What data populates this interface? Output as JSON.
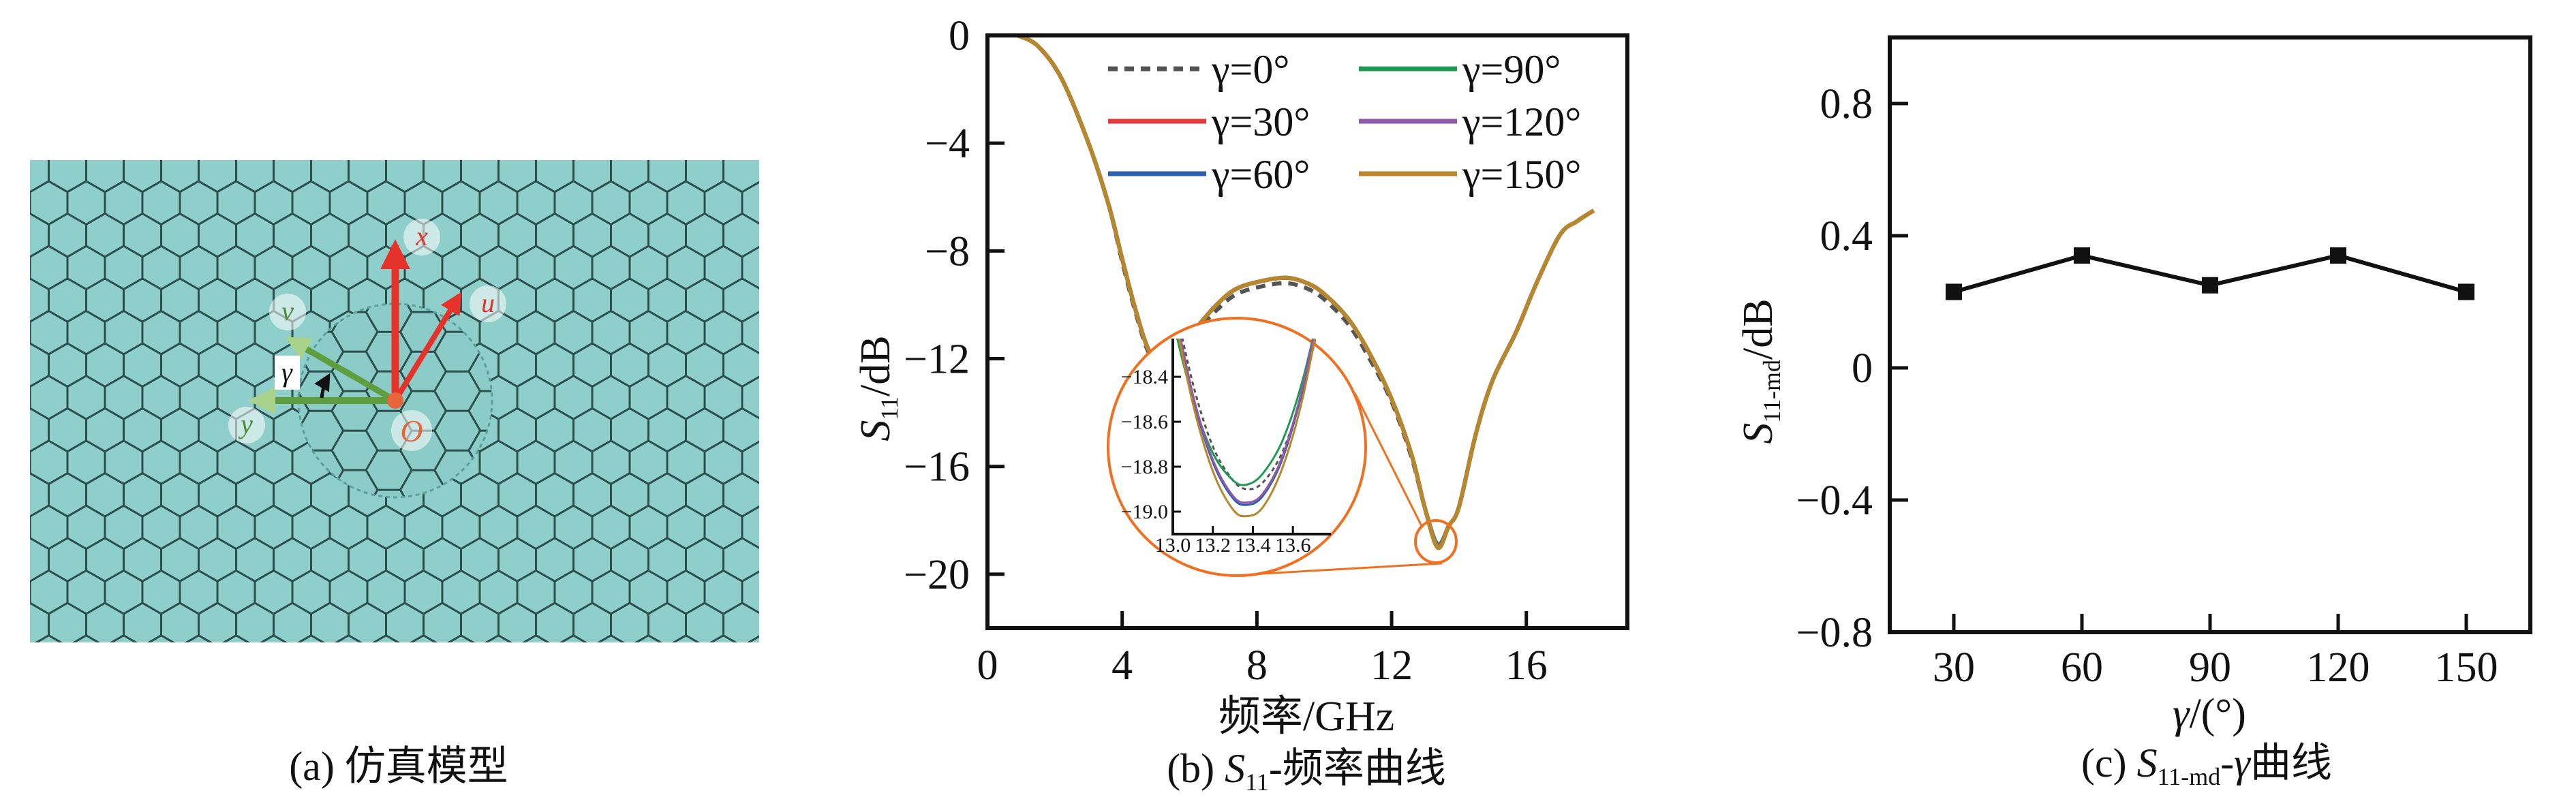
{
  "panel_a": {
    "caption": "(a) 仿真模型",
    "labels": {
      "x": "x",
      "u": "u",
      "v": "v",
      "y": "y",
      "origin": "O",
      "gamma": "γ"
    },
    "colors": {
      "tile": "#8fcfcb",
      "grid_line": "#2c4f4d",
      "red_arrow": "#e5322a",
      "green_arrow": "#7fb65a",
      "green_text": "#4f8a35",
      "origin": "#e8643a"
    }
  },
  "chart_data": [
    {
      "id": "s11_frequency",
      "type": "line",
      "caption": {
        "prefix": "(b) ",
        "sym": "S",
        "sub": "11",
        "suffix": "-频率曲线"
      },
      "xlabel": "频率/GHz",
      "ylabel": {
        "sym": "S",
        "sub": "11",
        "unit": "/dB"
      },
      "xlim": [
        0,
        19
      ],
      "ylim": [
        -22,
        0
      ],
      "xticks": [
        0,
        4,
        8,
        12,
        16
      ],
      "xtick_labels": [
        "0",
        "4",
        "8",
        "12",
        "16"
      ],
      "yticks": [
        0,
        -4,
        -8,
        -12,
        -16,
        -20
      ],
      "ytick_labels": [
        "0",
        "−4",
        "−8",
        "−12",
        "−16",
        "−20"
      ],
      "grid": false,
      "legend_placement": "top",
      "x": [
        0.9,
        1.5,
        2.2,
        3.0,
        3.6,
        4.0,
        4.4,
        4.8,
        5.2,
        5.6,
        6.1,
        6.8,
        7.4,
        8.2,
        8.9,
        9.5,
        10.0,
        10.7,
        11.3,
        12.0,
        12.6,
        13.0,
        13.37,
        13.7,
        14.0,
        14.5,
        15.0,
        15.7,
        16.3,
        17.0,
        17.5,
        18.0
      ],
      "series": [
        {
          "name": "γ=0°",
          "color": "#555555",
          "dash": true,
          "y": [
            0,
            -0.4,
            -1.6,
            -4.0,
            -6.3,
            -8.4,
            -10.3,
            -11.8,
            -12.1,
            -11.8,
            -11.1,
            -10.2,
            -9.6,
            -9.3,
            -9.2,
            -9.4,
            -9.8,
            -10.7,
            -11.9,
            -13.6,
            -15.7,
            -17.6,
            -18.9,
            -18.2,
            -17.5,
            -14.8,
            -12.8,
            -11.0,
            -9.2,
            -7.4,
            -6.9,
            -6.5
          ]
        },
        {
          "name": "γ=30°",
          "color": "#e03a3a",
          "dash": false,
          "y": [
            0,
            -0.4,
            -1.6,
            -4.0,
            -6.3,
            -8.3,
            -10.2,
            -11.7,
            -12.0,
            -11.7,
            -11.0,
            -10.0,
            -9.4,
            -9.1,
            -9.0,
            -9.2,
            -9.6,
            -10.5,
            -11.7,
            -13.5,
            -15.6,
            -17.6,
            -18.96,
            -18.2,
            -17.5,
            -14.8,
            -12.8,
            -11.0,
            -9.2,
            -7.4,
            -6.9,
            -6.5
          ]
        },
        {
          "name": "γ=60°",
          "color": "#2e5fae",
          "dash": false,
          "y": [
            0,
            -0.4,
            -1.6,
            -4.0,
            -6.3,
            -8.3,
            -10.2,
            -11.7,
            -12.0,
            -11.7,
            -11.0,
            -10.0,
            -9.4,
            -9.1,
            -9.0,
            -9.2,
            -9.6,
            -10.5,
            -11.7,
            -13.5,
            -15.6,
            -17.6,
            -18.97,
            -18.2,
            -17.5,
            -14.8,
            -12.8,
            -11.0,
            -9.2,
            -7.4,
            -6.9,
            -6.5
          ]
        },
        {
          "name": "γ=90°",
          "color": "#1f9a55",
          "dash": false,
          "y": [
            0,
            -0.4,
            -1.6,
            -4.0,
            -6.3,
            -8.3,
            -10.2,
            -11.7,
            -12.0,
            -11.7,
            -11.0,
            -10.0,
            -9.4,
            -9.1,
            -9.0,
            -9.2,
            -9.6,
            -10.5,
            -11.7,
            -13.5,
            -15.6,
            -17.6,
            -18.88,
            -18.2,
            -17.5,
            -14.8,
            -12.8,
            -11.0,
            -9.2,
            -7.4,
            -6.9,
            -6.5
          ]
        },
        {
          "name": "γ=120°",
          "color": "#8e5aa8",
          "dash": false,
          "y": [
            0,
            -0.4,
            -1.6,
            -4.0,
            -6.3,
            -8.3,
            -10.2,
            -11.7,
            -12.0,
            -11.7,
            -11.0,
            -10.0,
            -9.4,
            -9.1,
            -9.0,
            -9.2,
            -9.6,
            -10.5,
            -11.7,
            -13.5,
            -15.6,
            -17.6,
            -18.96,
            -18.2,
            -17.5,
            -14.8,
            -12.8,
            -11.0,
            -9.2,
            -7.4,
            -6.9,
            -6.5
          ]
        },
        {
          "name": "γ=150°",
          "color": "#b8862b",
          "dash": false,
          "y": [
            0,
            -0.4,
            -1.6,
            -4.0,
            -6.3,
            -8.3,
            -10.2,
            -11.7,
            -12.0,
            -11.7,
            -11.0,
            -10.0,
            -9.4,
            -9.1,
            -9.0,
            -9.2,
            -9.6,
            -10.5,
            -11.7,
            -13.5,
            -15.6,
            -17.6,
            -19.02,
            -18.2,
            -17.5,
            -14.8,
            -12.8,
            -11.0,
            -9.2,
            -7.4,
            -6.9,
            -6.5
          ]
        }
      ],
      "inset": {
        "type": "line",
        "xlim": [
          13.0,
          13.79
        ],
        "ylim": [
          -19.1,
          -18.23
        ],
        "xticks": [
          13.0,
          13.2,
          13.4,
          13.6
        ],
        "xtick_labels": [
          "13.0",
          "13.2",
          "13.4",
          "13.6"
        ],
        "yticks": [
          -18.4,
          -18.6,
          -18.8,
          -19.0
        ],
        "ytick_labels": [
          "−18.4",
          "−18.6",
          "−18.8",
          "−19.0"
        ],
        "highlight_color": "#f07020",
        "x": [
          13.0,
          13.1,
          13.2,
          13.3,
          13.37,
          13.45,
          13.55,
          13.65,
          13.75
        ],
        "series": [
          {
            "name": "γ=0°",
            "y": [
              -18.03,
              -18.43,
              -18.71,
              -18.86,
              -18.9,
              -18.87,
              -18.73,
              -18.46,
              -18.08
            ]
          },
          {
            "name": "γ=30°",
            "y": [
              -18.06,
              -18.48,
              -18.77,
              -18.93,
              -18.96,
              -18.92,
              -18.75,
              -18.44,
              -18.01
            ]
          },
          {
            "name": "γ=60°",
            "y": [
              -18.07,
              -18.49,
              -18.78,
              -18.94,
              -18.97,
              -18.93,
              -18.76,
              -18.45,
              -18.02
            ]
          },
          {
            "name": "γ=90°",
            "y": [
              -18.15,
              -18.5,
              -18.74,
              -18.86,
              -18.88,
              -18.83,
              -18.68,
              -18.41,
              -18.03
            ]
          },
          {
            "name": "γ=120°",
            "y": [
              -18.06,
              -18.48,
              -18.77,
              -18.93,
              -18.96,
              -18.92,
              -18.75,
              -18.44,
              -18.01
            ]
          },
          {
            "name": "γ=150°",
            "y": [
              -18.09,
              -18.52,
              -18.82,
              -18.99,
              -19.02,
              -18.98,
              -18.8,
              -18.49,
              -18.04
            ]
          }
        ]
      }
    },
    {
      "id": "s11md_gamma",
      "type": "line",
      "caption": {
        "prefix": "(c) ",
        "sym": "S",
        "sub": "11-md",
        "dash": "-",
        "gamma": "γ",
        "suffix": "曲线"
      },
      "xlabel": {
        "sym": "γ",
        "unit": "/(°)"
      },
      "ylabel": {
        "sym": "S",
        "sub": "11-md",
        "unit": "/dB"
      },
      "xlim": [
        15,
        165
      ],
      "ylim": [
        -0.8,
        1.0
      ],
      "xticks": [
        30,
        60,
        90,
        120,
        150
      ],
      "xtick_labels": [
        "30",
        "60",
        "90",
        "120",
        "150"
      ],
      "yticks": [
        0.8,
        0.4,
        0,
        -0.4,
        -0.8
      ],
      "ytick_labels": [
        "0.8",
        "0.4",
        "0",
        "−0.4",
        "−0.8"
      ],
      "grid": false,
      "marker": "square",
      "color": "#111111",
      "x": [
        30,
        60,
        90,
        120,
        150
      ],
      "y": [
        0.23,
        0.34,
        0.25,
        0.34,
        0.23
      ]
    }
  ]
}
